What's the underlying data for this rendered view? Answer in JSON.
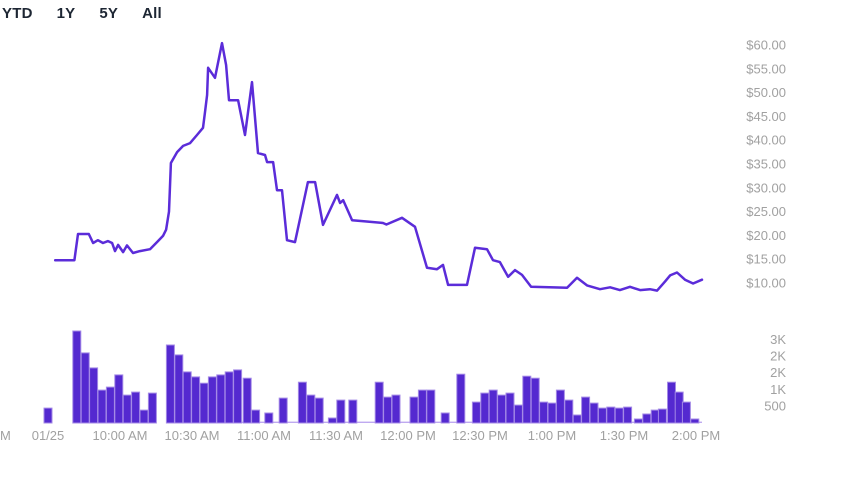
{
  "range_selector": {
    "options": [
      "YTD",
      "1Y",
      "5Y",
      "All"
    ]
  },
  "chart_data": {
    "type": "line",
    "title": "",
    "x_axis": {
      "clipped_left_label": "M",
      "ticks": [
        {
          "minute": 0,
          "label": "01/25"
        },
        {
          "minute": 30,
          "label": "10:00 AM"
        },
        {
          "minute": 60,
          "label": "10:30 AM"
        },
        {
          "minute": 90,
          "label": "11:00 AM"
        },
        {
          "minute": 120,
          "label": "11:30 AM"
        },
        {
          "minute": 150,
          "label": "12:00 PM"
        },
        {
          "minute": 180,
          "label": "12:30 PM"
        },
        {
          "minute": 210,
          "label": "1:00 PM"
        },
        {
          "minute": 240,
          "label": "1:30 PM"
        },
        {
          "minute": 270,
          "label": "2:00 PM"
        }
      ]
    },
    "price_axis": {
      "side": "right",
      "min": 10,
      "max": 60,
      "step": 5,
      "ticks": [
        {
          "value": 60,
          "label": "$60.00"
        },
        {
          "value": 55,
          "label": "$55.00"
        },
        {
          "value": 50,
          "label": "$50.00"
        },
        {
          "value": 45,
          "label": "$45.00"
        },
        {
          "value": 40,
          "label": "$40.00"
        },
        {
          "value": 35,
          "label": "$35.00"
        },
        {
          "value": 30,
          "label": "$30.00"
        },
        {
          "value": 25,
          "label": "$25.00"
        },
        {
          "value": 20,
          "label": "$20.00"
        },
        {
          "value": 15,
          "label": "$15.00"
        },
        {
          "value": 10,
          "label": "$10.00"
        }
      ]
    },
    "volume_axis": {
      "side": "right",
      "ticks": [
        {
          "value": 2500,
          "label": "3K"
        },
        {
          "value": 2000,
          "label": "2K"
        },
        {
          "value": 1500,
          "label": "2K"
        },
        {
          "value": 1000,
          "label": "1K"
        },
        {
          "value": 500,
          "label": "500"
        }
      ]
    },
    "price_series": {
      "name": "Price",
      "unit": "USD",
      "points": [
        [
          3,
          14.8
        ],
        [
          11,
          14.8
        ],
        [
          12.5,
          20.3
        ],
        [
          17,
          20.3
        ],
        [
          18.8,
          18.4
        ],
        [
          20.8,
          19.0
        ],
        [
          22.9,
          18.4
        ],
        [
          25,
          18.8
        ],
        [
          26.7,
          18.4
        ],
        [
          27.9,
          16.7
        ],
        [
          29.2,
          18.0
        ],
        [
          31.3,
          16.5
        ],
        [
          32.9,
          17.9
        ],
        [
          35.4,
          16.3
        ],
        [
          38.3,
          16.7
        ],
        [
          42.5,
          17.1
        ],
        [
          45.4,
          18.6
        ],
        [
          47.9,
          19.9
        ],
        [
          49.2,
          21.2
        ],
        [
          50.4,
          25.0
        ],
        [
          51.2,
          35.2
        ],
        [
          53.8,
          37.5
        ],
        [
          56.3,
          38.8
        ],
        [
          59.2,
          39.4
        ],
        [
          62.1,
          41.1
        ],
        [
          64.6,
          42.6
        ],
        [
          65.4,
          45.9
        ],
        [
          66.3,
          49.5
        ],
        [
          66.7,
          55.2
        ],
        [
          69.6,
          53.1
        ],
        [
          72.5,
          60.4
        ],
        [
          74.2,
          55.8
        ],
        [
          75.4,
          48.4
        ],
        [
          79.2,
          48.4
        ],
        [
          82.1,
          41.1
        ],
        [
          85,
          52.2
        ],
        [
          87.5,
          37.3
        ],
        [
          90.4,
          36.9
        ],
        [
          91.3,
          35.4
        ],
        [
          93.8,
          35.4
        ],
        [
          95.4,
          29.5
        ],
        [
          97.5,
          29.5
        ],
        [
          99.6,
          19.0
        ],
        [
          102.9,
          18.6
        ],
        [
          108.3,
          31.2
        ],
        [
          111.3,
          31.2
        ],
        [
          114.6,
          22.2
        ],
        [
          120.4,
          28.5
        ],
        [
          121.7,
          26.8
        ],
        [
          123,
          27.4
        ],
        [
          126.7,
          23.2
        ],
        [
          131,
          23.0
        ],
        [
          139.6,
          22.6
        ],
        [
          141,
          22.3
        ],
        [
          147.5,
          23.7
        ],
        [
          152.9,
          21.8
        ],
        [
          157.9,
          13.2
        ],
        [
          162.1,
          12.9
        ],
        [
          164.6,
          13.8
        ],
        [
          166.7,
          9.6
        ],
        [
          174.6,
          9.6
        ],
        [
          177.9,
          17.4
        ],
        [
          182.9,
          17.1
        ],
        [
          185.4,
          14.8
        ],
        [
          188.3,
          14.4
        ],
        [
          191.7,
          11.3
        ],
        [
          194.6,
          12.7
        ],
        [
          197.5,
          11.7
        ],
        [
          201.3,
          9.2
        ],
        [
          216.3,
          9.0
        ],
        [
          220.4,
          11.1
        ],
        [
          224.6,
          9.5
        ],
        [
          230,
          8.7
        ],
        [
          234.2,
          9.1
        ],
        [
          238.3,
          8.5
        ],
        [
          242.5,
          9.2
        ],
        [
          246.7,
          8.5
        ],
        [
          250.8,
          8.7
        ],
        [
          253.8,
          8.4
        ],
        [
          257.1,
          10.3
        ],
        [
          259.2,
          11.6
        ],
        [
          262.1,
          12.2
        ],
        [
          265.4,
          10.7
        ],
        [
          268.8,
          9.9
        ],
        [
          272.5,
          10.7
        ]
      ]
    },
    "volume_series": {
      "name": "Volume",
      "unit": "shares",
      "bars": [
        [
          0,
          450
        ],
        [
          12,
          2770
        ],
        [
          15.5,
          2110
        ],
        [
          19,
          1660
        ],
        [
          22.5,
          990
        ],
        [
          26,
          1080
        ],
        [
          29.5,
          1450
        ],
        [
          33,
          840
        ],
        [
          36.5,
          930
        ],
        [
          40,
          390
        ],
        [
          43.5,
          900
        ],
        [
          51,
          2350
        ],
        [
          54.5,
          2050
        ],
        [
          58,
          1540
        ],
        [
          61.5,
          1390
        ],
        [
          65,
          1200
        ],
        [
          68.5,
          1390
        ],
        [
          72,
          1450
        ],
        [
          75.5,
          1540
        ],
        [
          79,
          1600
        ],
        [
          83,
          1350
        ],
        [
          86.5,
          390
        ],
        [
          92,
          300
        ],
        [
          98,
          750
        ],
        [
          106,
          1230
        ],
        [
          109.5,
          840
        ],
        [
          113,
          750
        ],
        [
          118.5,
          150
        ],
        [
          122,
          690
        ],
        [
          127,
          690
        ],
        [
          138,
          1230
        ],
        [
          141.5,
          780
        ],
        [
          145,
          840
        ],
        [
          152.5,
          780
        ],
        [
          156,
          990
        ],
        [
          159.5,
          990
        ],
        [
          165.5,
          300
        ],
        [
          172,
          1470
        ],
        [
          178.5,
          630
        ],
        [
          182,
          900
        ],
        [
          185.5,
          990
        ],
        [
          189,
          840
        ],
        [
          192.5,
          900
        ],
        [
          196,
          540
        ],
        [
          199.5,
          1410
        ],
        [
          203,
          1350
        ],
        [
          206.5,
          630
        ],
        [
          210,
          600
        ],
        [
          213.5,
          990
        ],
        [
          217,
          690
        ],
        [
          220.5,
          240
        ],
        [
          224,
          780
        ],
        [
          227.5,
          600
        ],
        [
          231,
          450
        ],
        [
          234.5,
          480
        ],
        [
          238,
          450
        ],
        [
          241.5,
          480
        ],
        [
          246,
          120
        ],
        [
          249.5,
          270
        ],
        [
          253,
          390
        ],
        [
          256,
          420
        ],
        [
          259.8,
          1230
        ],
        [
          263,
          930
        ],
        [
          266,
          630
        ],
        [
          269.5,
          120
        ]
      ]
    },
    "colors": {
      "line": "#5b2cd9",
      "bar_fill": "#5429d0",
      "bar_stroke": "#a48ae6",
      "baseline": "#bfaaf0",
      "axis_text": "#a1a1a1",
      "range_text": "#1d2633"
    }
  }
}
